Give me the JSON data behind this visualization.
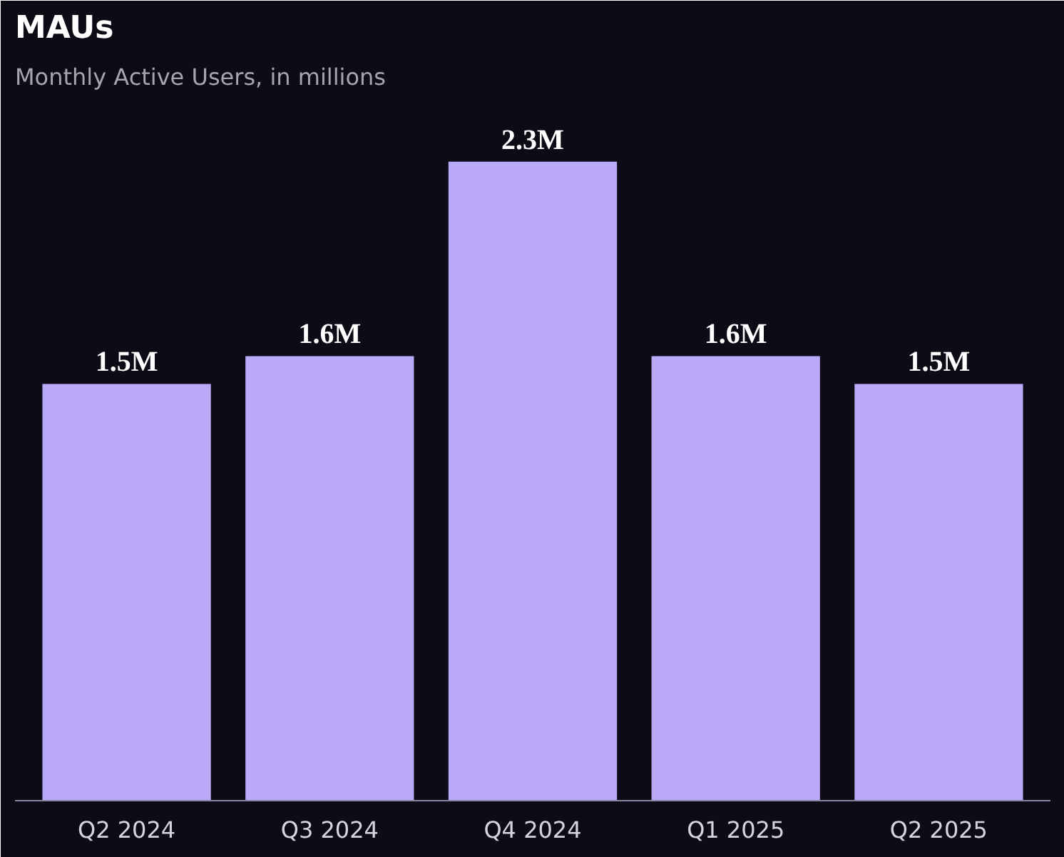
{
  "chart_data": {
    "type": "bar",
    "title": "MAUs",
    "subtitle": "Monthly Active Users, in millions",
    "categories": [
      "Q2 2024",
      "Q3 2024",
      "Q4 2024",
      "Q1 2025",
      "Q2 2025"
    ],
    "values": [
      1.5,
      1.6,
      2.3,
      1.6,
      1.5
    ],
    "value_labels": [
      "1.5M",
      "1.6M",
      "2.3M",
      "1.6M",
      "1.5M"
    ],
    "color": "#b9a9f7",
    "grid": false
  }
}
